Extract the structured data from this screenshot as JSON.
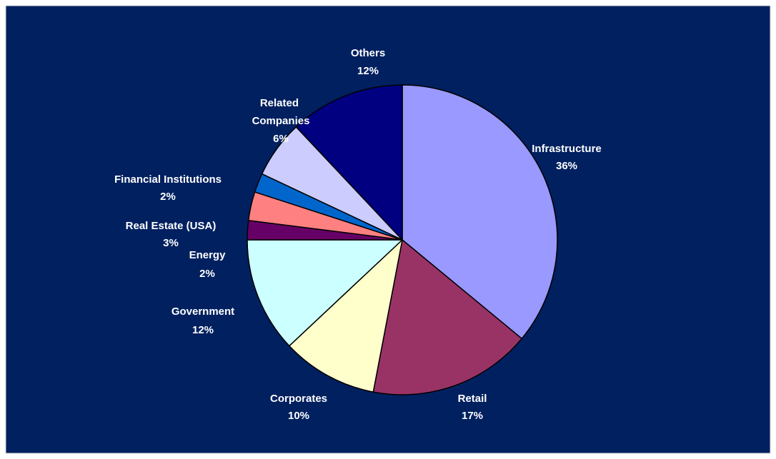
{
  "chart_data": {
    "type": "pie",
    "categories": [
      "Infrastructure",
      "Retail",
      "Corporates",
      "Government",
      "Energy",
      "Real Estate (USA)",
      "Financial Institutions",
      "Related Companies",
      "Others"
    ],
    "values": [
      36,
      17,
      10,
      12,
      2,
      3,
      2,
      6,
      12
    ],
    "value_labels": [
      "36%",
      "17%",
      "10%",
      "12%",
      "2%",
      "3%",
      "2%",
      "6%",
      "12%"
    ],
    "colors": [
      "#9999ff",
      "#993366",
      "#ffffcc",
      "#ccffff",
      "#660066",
      "#ff8080",
      "#0066cc",
      "#ccccff",
      "#000080"
    ]
  }
}
